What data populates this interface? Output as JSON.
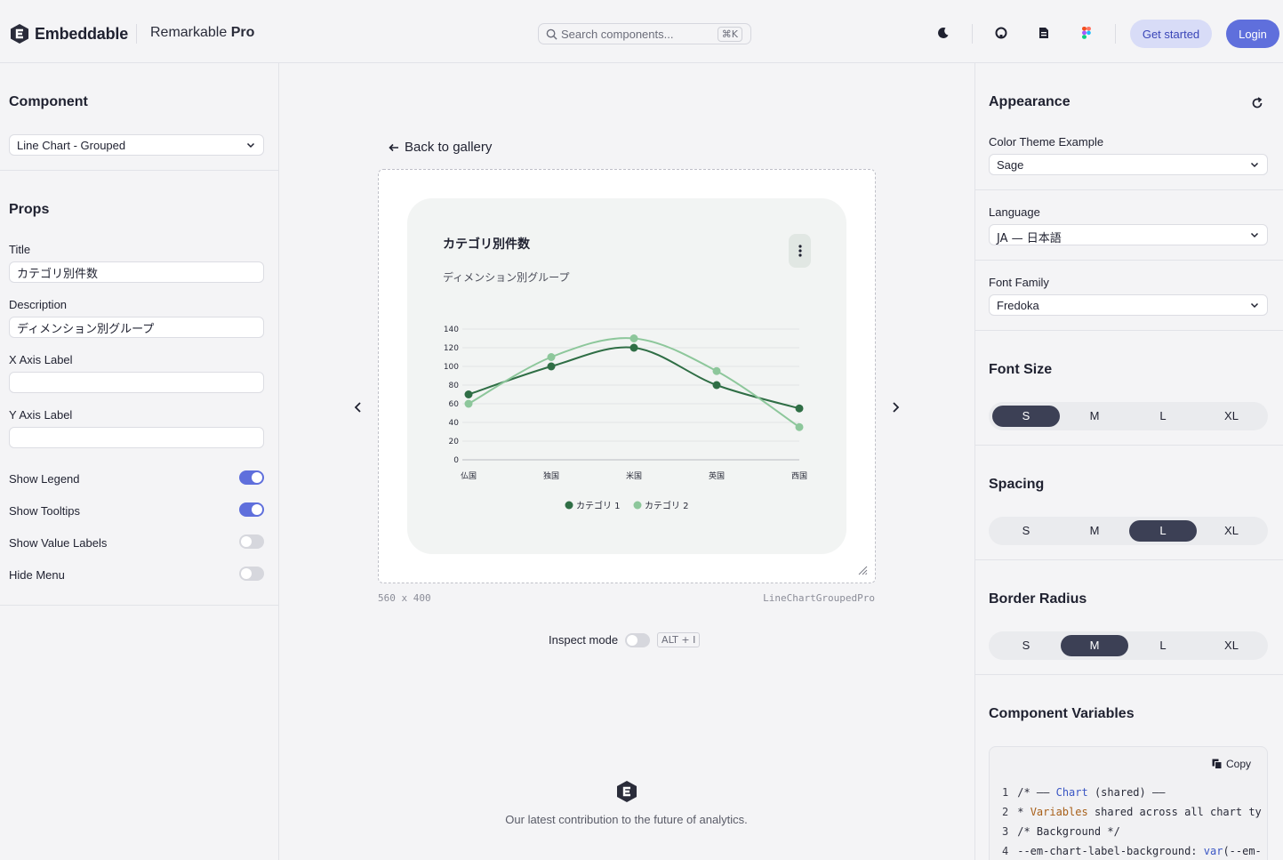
{
  "header": {
    "brand": "Embeddable",
    "product_name": "Remarkable",
    "product_suffix": "Pro",
    "search_placeholder": "Search components...",
    "search_shortcut": "⌘K",
    "get_started": "Get started",
    "login": "Login"
  },
  "left": {
    "component_title": "Component",
    "component_value": "Line Chart - Grouped",
    "props_title": "Props",
    "fields": {
      "title_label": "Title",
      "title_value": "カテゴリ別件数",
      "description_label": "Description",
      "description_value": "ディメンション別グループ",
      "xaxis_label": "X Axis Label",
      "xaxis_value": "",
      "yaxis_label": "Y Axis Label",
      "yaxis_value": ""
    },
    "toggles": [
      {
        "label": "Show Legend",
        "on": true
      },
      {
        "label": "Show Tooltips",
        "on": true
      },
      {
        "label": "Show Value Labels",
        "on": false
      },
      {
        "label": "Hide Menu",
        "on": false
      }
    ]
  },
  "center": {
    "back": "Back to gallery",
    "card_title": "カテゴリ別件数",
    "card_description": "ディメンション別グループ",
    "dimensions": "560 x 400",
    "component_name": "LineChartGroupedPro",
    "inspect_label": "Inspect mode",
    "inspect_shortcut": "ALT + I",
    "footer_text": "Our latest contribution to the future of analytics."
  },
  "chart_data": {
    "type": "line",
    "categories": [
      "仏国",
      "独国",
      "米国",
      "英国",
      "西国"
    ],
    "series": [
      {
        "name": "カテゴリ 1",
        "values": [
          70,
          100,
          120,
          80,
          55
        ],
        "color": "#2f6e45"
      },
      {
        "name": "カテゴリ 2",
        "values": [
          60,
          110,
          130,
          95,
          35
        ],
        "color": "#8dc79b"
      }
    ],
    "ylim": [
      0,
      140
    ],
    "yticks": [
      0,
      20,
      40,
      60,
      80,
      100,
      120,
      140
    ],
    "grid": true,
    "legend": "bottom"
  },
  "right": {
    "appearance_title": "Appearance",
    "theme_label": "Color Theme Example",
    "theme_value": "Sage",
    "language_label": "Language",
    "language_value": "JA — 日本語",
    "font_family_label": "Font Family",
    "font_family_value": "Fredoka",
    "font_size_title": "Font Size",
    "spacing_title": "Spacing",
    "border_radius_title": "Border Radius",
    "sizes": [
      "S",
      "M",
      "L",
      "XL"
    ],
    "font_size_selected": "S",
    "spacing_selected": "L",
    "border_radius_selected": "M",
    "variables_title": "Component Variables",
    "copy_label": "Copy",
    "code_lines": [
      {
        "n": "1",
        "parts": [
          [
            "",
            "/* —— "
          ],
          [
            "kw",
            "Chart"
          ],
          [
            "",
            " (shared) ——"
          ]
        ]
      },
      {
        "n": "2",
        "parts": [
          [
            "",
            "* "
          ],
          [
            "var",
            "Variables"
          ],
          [
            "",
            " shared across all chart ty"
          ]
        ]
      },
      {
        "n": "3",
        "parts": [
          [
            "",
            "/* Background */"
          ]
        ]
      },
      {
        "n": "4",
        "parts": [
          [
            "",
            "--em-chart-label-background: "
          ],
          [
            "kw",
            "var"
          ],
          [
            "",
            "(--em-"
          ]
        ]
      }
    ]
  }
}
